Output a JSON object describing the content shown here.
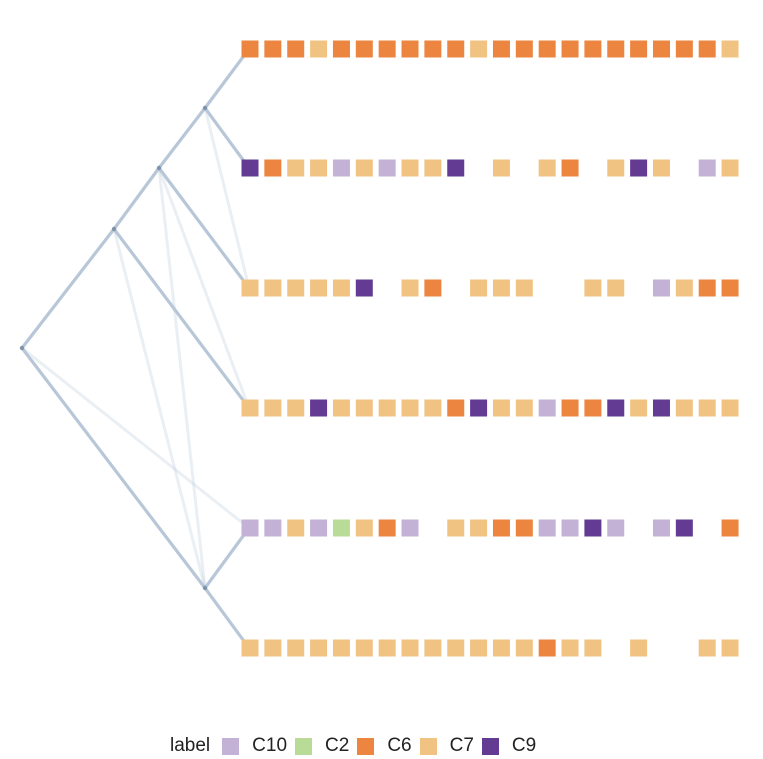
{
  "legend": {
    "title": "label",
    "items": [
      {
        "key": "C10",
        "label": "C10",
        "color": "#c3b2d5"
      },
      {
        "key": "C2",
        "label": "C2",
        "color": "#b8dc97"
      },
      {
        "key": "C6",
        "label": "C6",
        "color": "#eb8540"
      },
      {
        "key": "C7",
        "label": "C7",
        "color": "#f1c383"
      },
      {
        "key": "C9",
        "label": "C9",
        "color": "#633b93"
      }
    ]
  },
  "tree": {
    "edge_color": "#b4c4d6",
    "node_color": "#7f93ab",
    "nodes": [
      {
        "id": "root"
      },
      {
        "id": "n1"
      },
      {
        "id": "n2"
      },
      {
        "id": "n3"
      },
      {
        "id": "n4"
      },
      {
        "id": "t0"
      },
      {
        "id": "t1"
      },
      {
        "id": "t2"
      },
      {
        "id": "t3"
      },
      {
        "id": "t4"
      },
      {
        "id": "t5"
      }
    ],
    "edges": [
      {
        "from": "root",
        "to": "n1",
        "strength": "strong"
      },
      {
        "from": "root",
        "to": "n4",
        "strength": "strong"
      },
      {
        "from": "n1",
        "to": "n2",
        "strength": "strong"
      },
      {
        "from": "n1",
        "to": "t3",
        "strength": "strong"
      },
      {
        "from": "n2",
        "to": "n3",
        "strength": "strong"
      },
      {
        "from": "n2",
        "to": "t2",
        "strength": "strong"
      },
      {
        "from": "n3",
        "to": "t0",
        "strength": "strong"
      },
      {
        "from": "n3",
        "to": "t1",
        "strength": "strong"
      },
      {
        "from": "n4",
        "to": "t4",
        "strength": "strong"
      },
      {
        "from": "n4",
        "to": "t5",
        "strength": "strong"
      },
      {
        "from": "root",
        "to": "t4",
        "strength": "faint"
      },
      {
        "from": "n1",
        "to": "n4",
        "strength": "faint"
      },
      {
        "from": "n2",
        "to": "n4",
        "strength": "faint"
      },
      {
        "from": "n2",
        "to": "t3",
        "strength": "faint"
      },
      {
        "from": "n3",
        "to": "t2",
        "strength": "faint"
      }
    ]
  },
  "rows": [
    [
      "C6",
      "C6",
      "C6",
      "C7",
      "C6",
      "C6",
      "C6",
      "C6",
      "C6",
      "C6",
      "C7",
      "C6",
      "C6",
      "C6",
      "C6",
      "C6",
      "C6",
      "C6",
      "C6",
      "C6",
      "C6",
      "C7"
    ],
    [
      "C9",
      "C6",
      "C7",
      "C7",
      "C10",
      "C7",
      "C10",
      "C7",
      "C7",
      "C9",
      "",
      "C7",
      "",
      "C7",
      "C6",
      "",
      "C7",
      "C9",
      "C7",
      "",
      "C10",
      "C7"
    ],
    [
      "C7",
      "C7",
      "C7",
      "C7",
      "C7",
      "C9",
      "",
      "C7",
      "C6",
      "",
      "C7",
      "C7",
      "C7",
      "",
      "",
      "C7",
      "C7",
      "",
      "C10",
      "C7",
      "C6",
      "C6"
    ],
    [
      "C7",
      "C7",
      "C7",
      "C9",
      "C7",
      "C7",
      "C7",
      "C7",
      "C7",
      "C6",
      "C9",
      "C7",
      "C7",
      "C10",
      "C6",
      "C6",
      "C9",
      "C7",
      "C9",
      "C7",
      "C7",
      "C7"
    ],
    [
      "C10",
      "C10",
      "C7",
      "C10",
      "C2",
      "C7",
      "C6",
      "C10",
      "",
      "C7",
      "C7",
      "C6",
      "C6",
      "C10",
      "C10",
      "C9",
      "C10",
      "",
      "C10",
      "C9",
      "",
      "C6"
    ],
    [
      "C7",
      "C7",
      "C7",
      "C7",
      "C7",
      "C7",
      "C7",
      "C7",
      "C7",
      "C7",
      "C7",
      "C7",
      "C7",
      "C6",
      "C7",
      "C7",
      "",
      "C7",
      "",
      "",
      "C7",
      "C7"
    ]
  ]
}
